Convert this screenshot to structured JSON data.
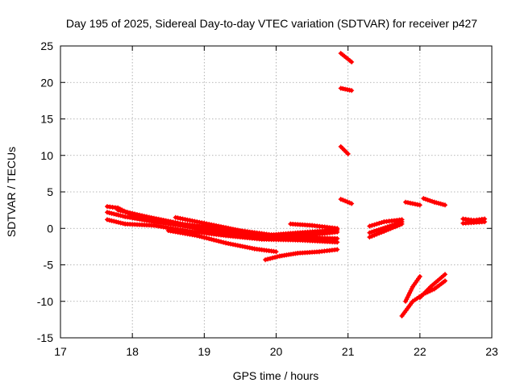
{
  "chart_data": {
    "type": "scatter",
    "title": "Day 195 of 2025, Sidereal Day-to-day VTEC variation (SDTVAR) for receiver p427",
    "xlabel": "GPS time / hours",
    "ylabel": "SDTVAR / TECUs",
    "xlim": [
      17,
      23
    ],
    "ylim": [
      -15,
      25
    ],
    "xticks": [
      17,
      18,
      19,
      20,
      21,
      22,
      23
    ],
    "yticks": [
      -15,
      -10,
      -5,
      0,
      5,
      10,
      15,
      20,
      25
    ],
    "grid": true,
    "legend": "none",
    "marker_color": "#ff0000",
    "series": [
      {
        "points": [
          [
            17.65,
            3.0
          ],
          [
            17.8,
            2.8
          ],
          [
            18.0,
            1.8
          ],
          [
            18.5,
            0.7
          ],
          [
            19.0,
            -0.2
          ],
          [
            19.5,
            -0.9
          ],
          [
            20.0,
            -1.3
          ],
          [
            20.5,
            -0.9
          ],
          [
            20.85,
            -0.5
          ]
        ]
      },
      {
        "points": [
          [
            17.65,
            2.2
          ],
          [
            17.9,
            1.6
          ],
          [
            18.3,
            0.9
          ],
          [
            18.8,
            0.2
          ],
          [
            19.3,
            -0.4
          ],
          [
            19.8,
            -1.0
          ],
          [
            20.3,
            -0.6
          ],
          [
            20.85,
            -0.2
          ]
        ]
      },
      {
        "points": [
          [
            17.65,
            1.2
          ],
          [
            17.9,
            0.6
          ],
          [
            18.3,
            0.4
          ],
          [
            18.8,
            -0.4
          ],
          [
            19.3,
            -1.0
          ],
          [
            19.8,
            -1.5
          ],
          [
            20.3,
            -1.6
          ],
          [
            20.85,
            -1.9
          ]
        ]
      },
      {
        "points": [
          [
            17.8,
            2.5
          ],
          [
            18.2,
            1.6
          ],
          [
            18.7,
            0.6
          ],
          [
            19.2,
            0.0
          ],
          [
            19.7,
            -0.6
          ],
          [
            20.2,
            -1.2
          ],
          [
            20.85,
            -1.4
          ]
        ]
      },
      {
        "points": [
          [
            18.6,
            1.5
          ],
          [
            19.0,
            0.7
          ],
          [
            19.5,
            -0.3
          ],
          [
            20.0,
            -1.0
          ]
        ]
      },
      {
        "points": [
          [
            18.5,
            -0.3
          ],
          [
            18.9,
            -1.0
          ],
          [
            19.3,
            -2.0
          ],
          [
            19.7,
            -2.8
          ],
          [
            20.0,
            -3.2
          ]
        ]
      },
      {
        "points": [
          [
            19.85,
            -4.3
          ],
          [
            20.05,
            -3.8
          ],
          [
            20.3,
            -3.4
          ],
          [
            20.6,
            -3.2
          ],
          [
            20.85,
            -2.9
          ]
        ]
      },
      {
        "points": [
          [
            20.2,
            0.6
          ],
          [
            20.5,
            0.4
          ],
          [
            20.85,
            0.0
          ]
        ]
      },
      {
        "points": [
          [
            20.9,
            24.0
          ],
          [
            21.05,
            22.8
          ]
        ]
      },
      {
        "points": [
          [
            20.9,
            19.2
          ],
          [
            21.05,
            18.9
          ]
        ]
      },
      {
        "points": [
          [
            20.9,
            11.2
          ],
          [
            21.0,
            10.2
          ]
        ]
      },
      {
        "points": [
          [
            20.9,
            4.0
          ],
          [
            21.05,
            3.4
          ]
        ]
      },
      {
        "points": [
          [
            21.3,
            0.3
          ],
          [
            21.5,
            0.9
          ],
          [
            21.75,
            1.2
          ]
        ]
      },
      {
        "points": [
          [
            21.3,
            -1.2
          ],
          [
            21.5,
            -0.4
          ],
          [
            21.75,
            0.6
          ]
        ]
      },
      {
        "points": [
          [
            21.3,
            -0.6
          ],
          [
            21.55,
            0.2
          ],
          [
            21.75,
            0.9
          ]
        ]
      },
      {
        "points": [
          [
            21.8,
            3.6
          ],
          [
            22.0,
            3.2
          ]
        ]
      },
      {
        "points": [
          [
            22.05,
            4.1
          ],
          [
            22.2,
            3.6
          ],
          [
            22.35,
            3.2
          ]
        ]
      },
      {
        "points": [
          [
            21.8,
            -10.0
          ],
          [
            21.9,
            -8.0
          ],
          [
            22.0,
            -6.6
          ]
        ]
      },
      {
        "points": [
          [
            21.75,
            -12.0
          ],
          [
            21.9,
            -10.0
          ],
          [
            22.05,
            -9.0
          ]
        ]
      },
      {
        "points": [
          [
            22.0,
            -9.5
          ],
          [
            22.15,
            -8.0
          ],
          [
            22.35,
            -6.3
          ]
        ]
      },
      {
        "points": [
          [
            22.05,
            -9.0
          ],
          [
            22.2,
            -8.3
          ],
          [
            22.35,
            -7.2
          ]
        ]
      },
      {
        "points": [
          [
            22.6,
            1.3
          ],
          [
            22.75,
            1.1
          ],
          [
            22.9,
            1.3
          ]
        ]
      },
      {
        "points": [
          [
            22.6,
            0.7
          ],
          [
            22.75,
            0.8
          ],
          [
            22.9,
            0.9
          ]
        ]
      }
    ]
  }
}
